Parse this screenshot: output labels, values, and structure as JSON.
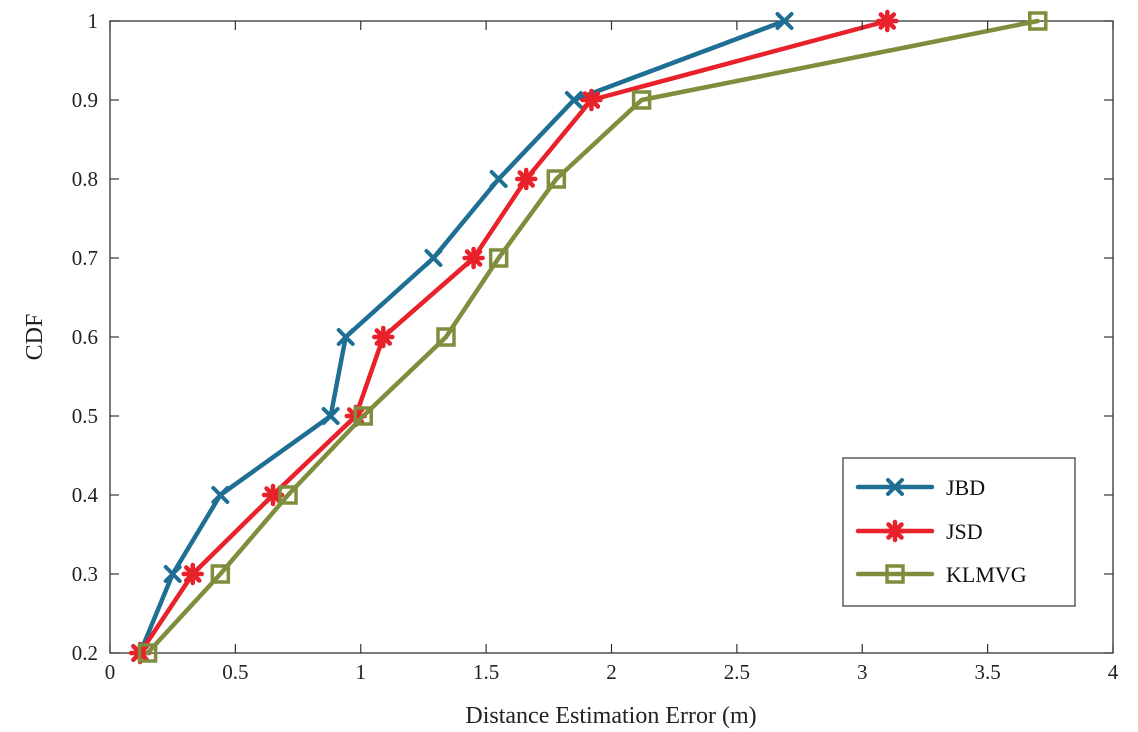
{
  "chart_data": {
    "type": "line",
    "xlabel": "Distance Estimation Error (m)",
    "ylabel": "CDF",
    "xlim": [
      0,
      4
    ],
    "ylim": [
      0.2,
      1
    ],
    "xticks": [
      "0",
      "0.5",
      "1",
      "1.5",
      "2",
      "2.5",
      "3",
      "3.5",
      "4"
    ],
    "yticks": [
      "0.2",
      "0.3",
      "0.4",
      "0.5",
      "0.6",
      "0.7",
      "0.8",
      "0.9",
      "1"
    ],
    "grid": false,
    "legend_position": "bottom-right",
    "series": [
      {
        "name": "JBD",
        "color": "#1f6e94",
        "marker": "x",
        "x": [
          0.12,
          0.25,
          0.44,
          0.88,
          0.94,
          1.29,
          1.55,
          1.85,
          2.69
        ],
        "y": [
          0.2,
          0.3,
          0.4,
          0.5,
          0.6,
          0.7,
          0.8,
          0.9,
          1.0
        ]
      },
      {
        "name": "JSD",
        "color": "#e8212b",
        "marker": "star",
        "x": [
          0.12,
          0.33,
          0.65,
          0.98,
          1.09,
          1.45,
          1.66,
          1.92,
          3.1
        ],
        "y": [
          0.2,
          0.3,
          0.4,
          0.5,
          0.6,
          0.7,
          0.8,
          0.9,
          1.0
        ]
      },
      {
        "name": "KLMVG",
        "color": "#7f8e3c",
        "marker": "square",
        "x": [
          0.15,
          0.44,
          0.71,
          1.01,
          1.34,
          1.55,
          1.78,
          2.12,
          3.7
        ],
        "y": [
          0.2,
          0.3,
          0.4,
          0.5,
          0.6,
          0.7,
          0.8,
          0.9,
          1.0
        ]
      }
    ]
  }
}
